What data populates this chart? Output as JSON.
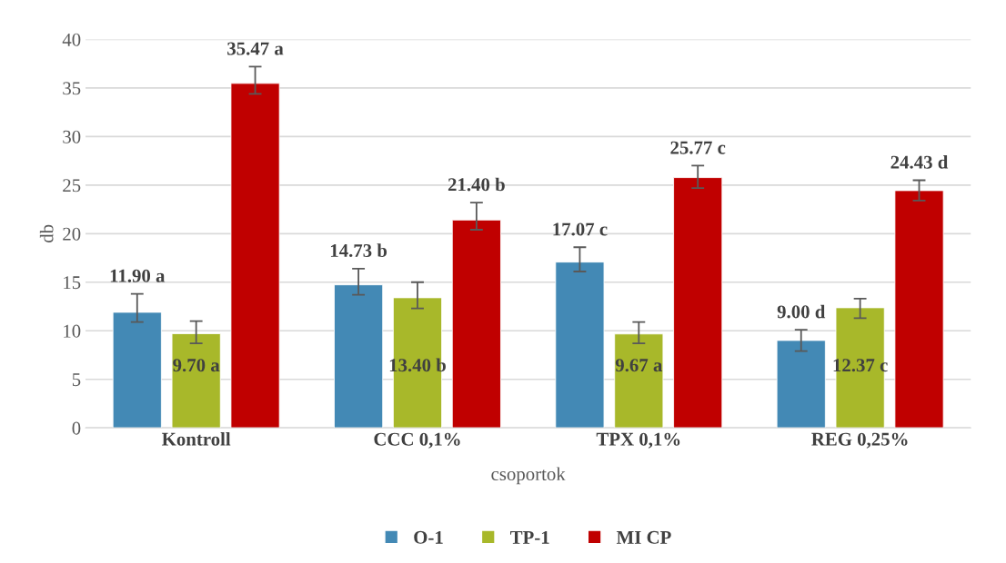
{
  "chart_data": {
    "type": "bar",
    "xlabel": "csoportok",
    "ylabel": "db",
    "categories": [
      "Kontroll",
      "CCC 0,1%",
      "TPX 0,1%",
      "REG 0,25%"
    ],
    "series": [
      {
        "name": "O-1",
        "color": "#4389b5",
        "values": [
          11.9,
          14.73,
          17.07,
          9.0
        ],
        "errors": [
          [
            10.9,
            13.8
          ],
          [
            13.7,
            16.4
          ],
          [
            16.1,
            18.6
          ],
          [
            7.9,
            10.1
          ]
        ],
        "value_labels": [
          "11.90 a",
          "14.73 b",
          "17.07 c",
          "9.00 d"
        ]
      },
      {
        "name": "TP-1",
        "color": "#a8b82a",
        "values": [
          9.7,
          13.4,
          9.67,
          12.37
        ],
        "errors": [
          [
            8.7,
            11.0
          ],
          [
            12.3,
            15.0
          ],
          [
            8.7,
            10.9
          ],
          [
            11.3,
            13.3
          ]
        ],
        "value_labels": [
          "9.70 a",
          "13.40 b",
          "9.67 a",
          "12.37 c"
        ]
      },
      {
        "name": "MI CP",
        "color": "#c00000",
        "values": [
          35.47,
          21.4,
          25.77,
          24.43
        ],
        "errors": [
          [
            34.4,
            37.2
          ],
          [
            20.4,
            23.2
          ],
          [
            24.7,
            27.0
          ],
          [
            23.4,
            25.5
          ]
        ],
        "value_labels": [
          "35.47 a",
          "21.40 b",
          "25.77 c",
          "24.43 d"
        ]
      }
    ],
    "ylim": [
      0,
      40
    ],
    "yticks": [
      0,
      5,
      10,
      15,
      20,
      25,
      30,
      35,
      40
    ],
    "grid": "y",
    "legend": "bottom"
  }
}
